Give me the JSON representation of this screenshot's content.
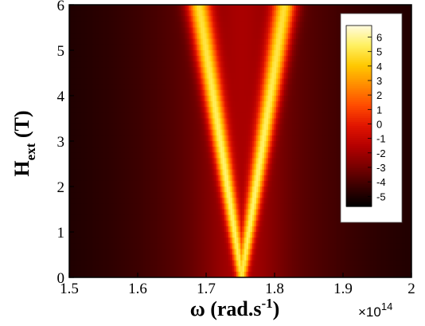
{
  "chart_data": {
    "type": "heatmap",
    "title": "",
    "xlabel": "ω (rad.s",
    "xlabel_superscript": "-1",
    "xlabel_close": ")",
    "ylabel": "H",
    "ylabel_subscript": "ext",
    "ylabel_unit": " (T)",
    "x_multiplier": "×10",
    "x_multiplier_exponent": "14",
    "xlim": [
      1.5,
      2.0
    ],
    "ylim": [
      0,
      6
    ],
    "x_ticks": [
      "1.5",
      "1.6",
      "1.7",
      "1.8",
      "1.9",
      "2"
    ],
    "y_ticks": [
      "0",
      "1",
      "2",
      "3",
      "4",
      "5",
      "6"
    ],
    "colorbar": {
      "ticks": [
        "6",
        "5",
        "4",
        "3",
        "2",
        "1",
        "0",
        "-1",
        "-2",
        "-3",
        "-4",
        "-5"
      ],
      "range": [
        -5.7,
        6.8
      ],
      "placement": "top-right inset",
      "colors": [
        "#000000",
        "#3a0000",
        "#7a0000",
        "#b40000",
        "#e01400",
        "#ff4a00",
        "#ff8a00",
        "#ffc800",
        "#fff060",
        "#fffbe0"
      ]
    },
    "features": {
      "center_frequency": 1.752,
      "branch_split_rate_per_tesla": 0.0105,
      "note_values": "Split resonance: single peak at H=0, two branches diverging with field"
    }
  }
}
